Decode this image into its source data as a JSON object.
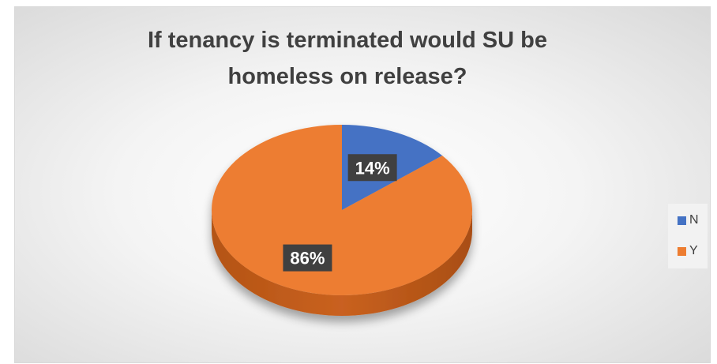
{
  "chart_data": {
    "type": "pie",
    "title": "If tenancy is terminated would SU be homeless on release?",
    "categories": [
      "N",
      "Y"
    ],
    "values": [
      14,
      86
    ],
    "data_labels": [
      "14%",
      "86%"
    ],
    "colors": [
      "#4472c4",
      "#ed7d31"
    ],
    "legend": {
      "position": "right",
      "entries": [
        "N",
        "Y"
      ]
    }
  }
}
